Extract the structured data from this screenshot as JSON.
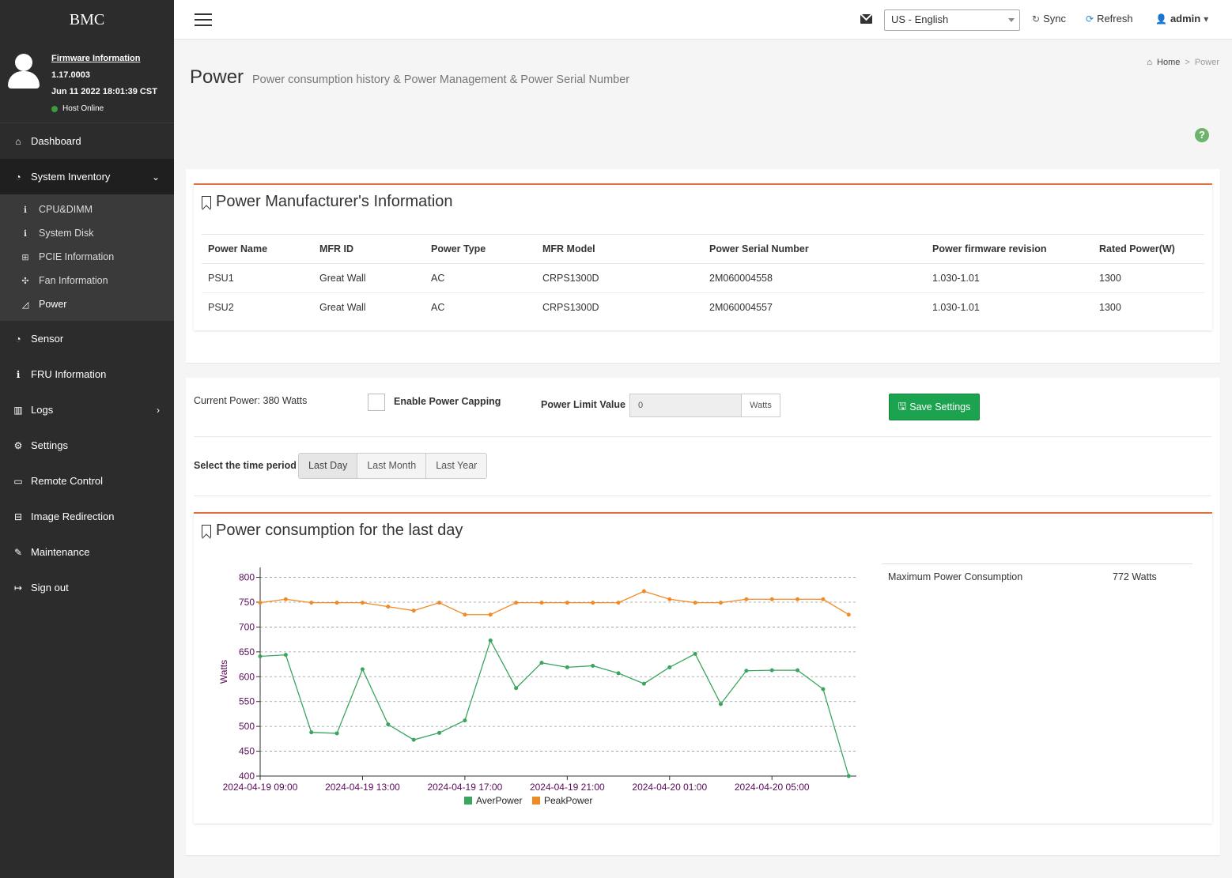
{
  "brand": "BMC",
  "user_panel": {
    "firmware_link": "Firmware Information",
    "version": "1.17.0003",
    "build_date": "Jun 11 2022 18:01:39 CST",
    "host_status": "Host Online",
    "host_status_color": "#3c9b3c"
  },
  "sidebar": {
    "items": [
      {
        "label": "Dashboard",
        "icon": "home-icon"
      },
      {
        "label": "System Inventory",
        "icon": "dashboard-icon"
      },
      {
        "label": "Sensor",
        "icon": "gauge-icon"
      },
      {
        "label": "FRU Information",
        "icon": "info-icon"
      },
      {
        "label": "Logs",
        "icon": "bar-chart-icon"
      },
      {
        "label": "Settings",
        "icon": "gear-icon"
      },
      {
        "label": "Remote Control",
        "icon": "monitor-icon"
      },
      {
        "label": "Image Redirection",
        "icon": "drive-icon"
      },
      {
        "label": "Maintenance",
        "icon": "wrench-icon"
      },
      {
        "label": "Sign out",
        "icon": "sign-out-icon"
      }
    ],
    "sub_items": [
      {
        "label": "CPU&DIMM",
        "icon": "info-icon"
      },
      {
        "label": "System Disk",
        "icon": "info-icon"
      },
      {
        "label": "PCIE Information",
        "icon": "sitemap-icon"
      },
      {
        "label": "Fan Information",
        "icon": "fan-icon"
      },
      {
        "label": "Power",
        "icon": "area-chart-icon"
      }
    ]
  },
  "header": {
    "language": "US - English",
    "sync_label": "Sync",
    "refresh_label": "Refresh",
    "user_label": "admin"
  },
  "page": {
    "title": "Power",
    "subtitle": "Power consumption history & Power Management & Power Serial Number",
    "breadcrumb_home": "Home",
    "breadcrumb_sep": ">",
    "breadcrumb_current": "Power"
  },
  "manufacturer": {
    "title": "Power Manufacturer's Information",
    "columns": [
      "Power Name",
      "MFR ID",
      "Power Type",
      "MFR Model",
      "Power Serial Number",
      "Power firmware revision",
      "Rated Power(W)"
    ],
    "rows": [
      [
        "PSU1",
        "Great Wall",
        "AC",
        "CRPS1300D",
        "2M060004558",
        "1.030-1.01",
        "1300"
      ],
      [
        "PSU2",
        "Great Wall",
        "AC",
        "CRPS1300D",
        "2M060004557",
        "1.030-1.01",
        "1300"
      ]
    ]
  },
  "settings": {
    "current_power": "Current Power: 380 Watts",
    "enable_capping_label": "Enable Power Capping",
    "enable_capping_checked": false,
    "power_limit_label": "Power Limit Value",
    "power_limit_value": "0",
    "power_limit_unit": "Watts",
    "save_label": "Save Settings",
    "time_period_label": "Select the time period",
    "time_periods": [
      "Last Day",
      "Last Month",
      "Last Year"
    ],
    "selected_period": "Last Day"
  },
  "consumption": {
    "title": "Power consumption for the last day",
    "max_label": "Maximum Power Consumption",
    "max_value": "772 Watts"
  },
  "chart_data": {
    "type": "line",
    "ylabel": "Watts",
    "ylim": [
      400,
      820
    ],
    "yticks": [
      400,
      450,
      500,
      550,
      600,
      650,
      700,
      750,
      800
    ],
    "xtick_labels": [
      "2024-04-19 09:00",
      "2024-04-19 13:00",
      "2024-04-19 17:00",
      "2024-04-19 21:00",
      "2024-04-20 01:00",
      "2024-04-20 05:00"
    ],
    "xtick_hours": [
      0,
      4,
      8,
      12,
      16,
      20
    ],
    "x_hours_range": [
      0,
      23.3
    ],
    "grid": true,
    "legend": "bottom-center",
    "series": [
      {
        "name": "AverPower",
        "color": "#3aa55c",
        "x_hours": [
          0,
          1,
          2,
          3,
          4,
          5,
          6,
          7,
          8,
          9,
          10,
          11,
          12,
          13,
          14,
          15,
          16,
          17,
          18,
          19,
          20,
          21,
          22,
          23
        ],
        "values": [
          641,
          644,
          488,
          486,
          615,
          504,
          473,
          487,
          512,
          673,
          577,
          628,
          619,
          622,
          607,
          586,
          619,
          646,
          545,
          612,
          613,
          613,
          575,
          400
        ]
      },
      {
        "name": "PeakPower",
        "color": "#f08a24",
        "x_hours": [
          0,
          1,
          2,
          3,
          4,
          5,
          6,
          7,
          8,
          9,
          10,
          11,
          12,
          13,
          14,
          15,
          16,
          17,
          18,
          19,
          20,
          21,
          22,
          23
        ],
        "values": [
          749,
          756,
          749,
          749,
          749,
          741,
          733,
          749,
          725,
          725,
          749,
          749,
          749,
          749,
          749,
          772,
          756,
          749,
          749,
          756,
          756,
          756,
          756,
          725
        ]
      }
    ]
  }
}
